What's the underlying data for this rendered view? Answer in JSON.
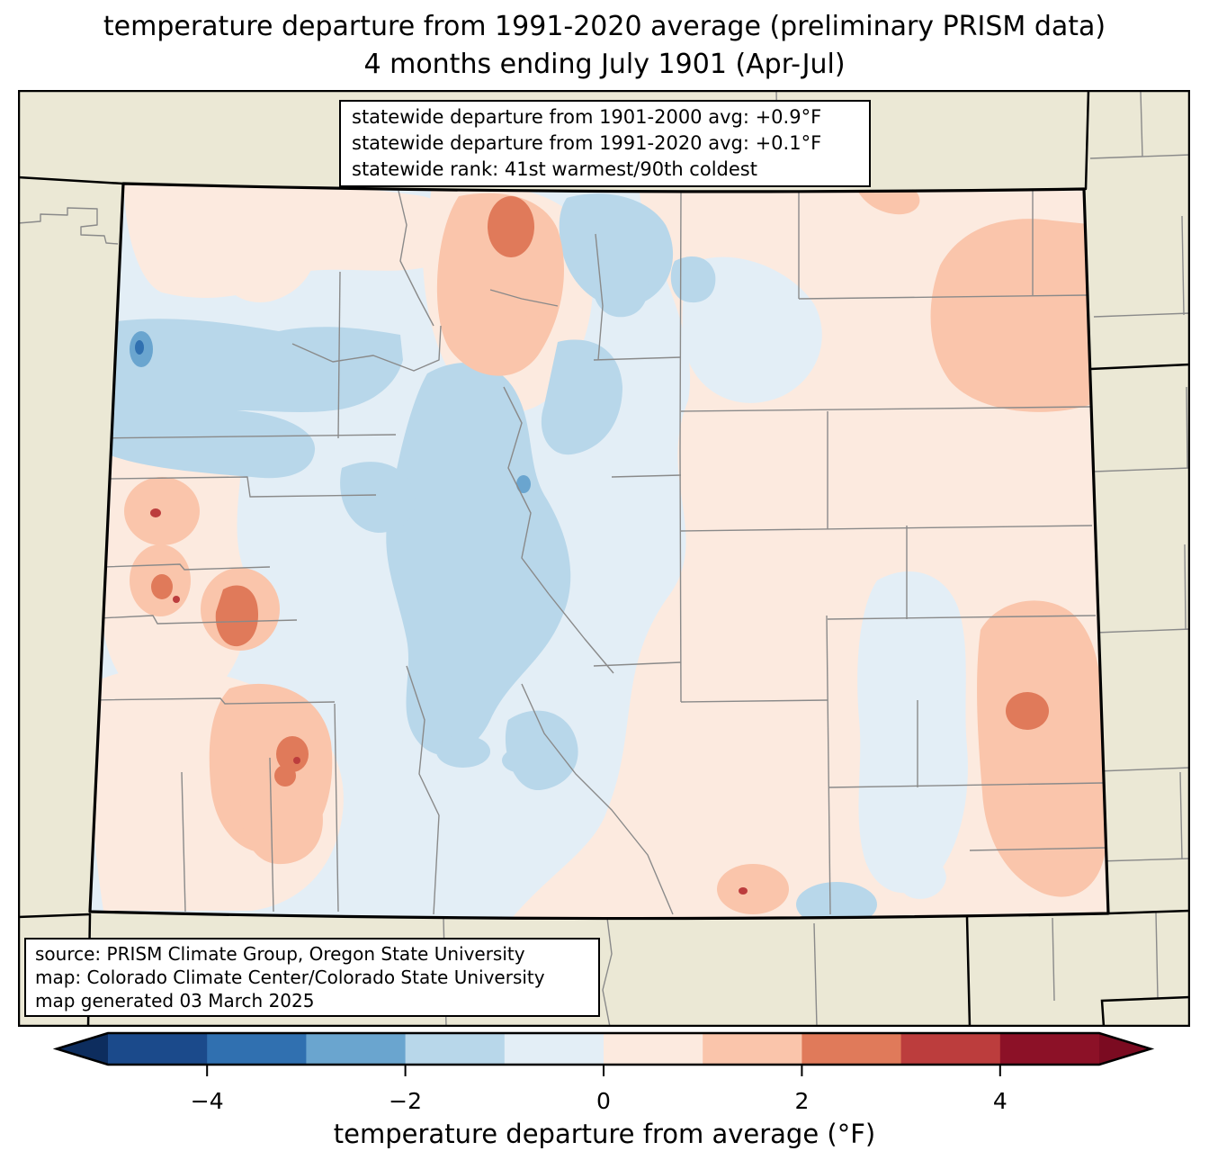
{
  "title": {
    "line1": "temperature departure from 1991-2020 average (preliminary PRISM data)",
    "line2": "4 months ending July 1901 (Apr-Jul)"
  },
  "stats_box": {
    "line1": "statewide departure from 1901-2000 avg: +0.9°F",
    "line2": "statewide departure from 1991-2020 avg: +0.1°F",
    "line3": "statewide rank: 41st warmest/90th coldest"
  },
  "source_box": {
    "line1": "source: PRISM Climate Group, Oregon State University",
    "line2": "map: Colorado Climate Center/Colorado State University",
    "line3": "map generated 03 March 2025"
  },
  "colorbar": {
    "label": "temperature departure from average (°F)",
    "range": [
      -5,
      5
    ],
    "ticks": [
      {
        "value": -4,
        "label": "−4"
      },
      {
        "value": -2,
        "label": "−2"
      },
      {
        "value": 0,
        "label": "0"
      },
      {
        "value": 2,
        "label": "2"
      },
      {
        "value": 4,
        "label": "4"
      }
    ],
    "segments": [
      "#1b4a8b",
      "#3070b0",
      "#6aa5cf",
      "#b8d7ea",
      "#e3eef6",
      "#fceadf",
      "#fac5ab",
      "#e07a5a",
      "#bc3d3d",
      "#8c1127"
    ],
    "arrow_left": "#0d2d5e",
    "arrow_right": "#7b0b21"
  },
  "map": {
    "region": "Colorado",
    "palette": {
      "land": "#ebe8d5",
      "county": "#8a8a8a",
      "c0": "#e3eef6",
      "cm1": "#b8d7ea",
      "cm2": "#6aa5cf",
      "cm3": "#3070b0",
      "cp1": "#fceadf",
      "cp2": "#fac5ab",
      "cp3": "#e07a5a",
      "cp4": "#bc3d3d"
    }
  },
  "chart_data": {
    "type": "heatmap",
    "subtype": "choropleth-anomaly-map",
    "title": "temperature departure from 1991-2020 average (preliminary PRISM data), 4 months ending July 1901 (Apr-Jul)",
    "colorbar_label": "temperature departure from average (°F)",
    "colorbar_range_f": [
      -5,
      5
    ],
    "colorbar_tick_values_f": [
      -4,
      -2,
      0,
      2,
      4
    ],
    "statewide_departure_from_1901_2000_avg_f": 0.9,
    "statewide_departure_from_1991_2020_avg_f": 0.1,
    "statewide_rank": "41st warmest/90th coldest",
    "features": [
      {
        "area": "central and west-central mountains",
        "anomaly_f": "-1 to -2"
      },
      {
        "area": "northwest (Moffat/Rio Blanco)",
        "anomaly_f": "-1 to -3"
      },
      {
        "area": "north-central (Jackson County)",
        "anomaly_f": "+1 to +3"
      },
      {
        "area": "west-central valleys (Grand Junction to Gunnison)",
        "anomaly_f": "+1 to +3"
      },
      {
        "area": "southwest (San Juan mountains)",
        "anomaly_f": "+1 to +3"
      },
      {
        "area": "eastern plains",
        "anomaly_f": "0 to +1"
      },
      {
        "area": "southeast near Kansas border",
        "anomaly_f": "+1 to +3"
      },
      {
        "area": "northeast corner",
        "anomaly_f": "+1 to +2"
      },
      {
        "area": "south-central near New Mexico border",
        "anomaly_f": "+1 to +2"
      }
    ]
  }
}
